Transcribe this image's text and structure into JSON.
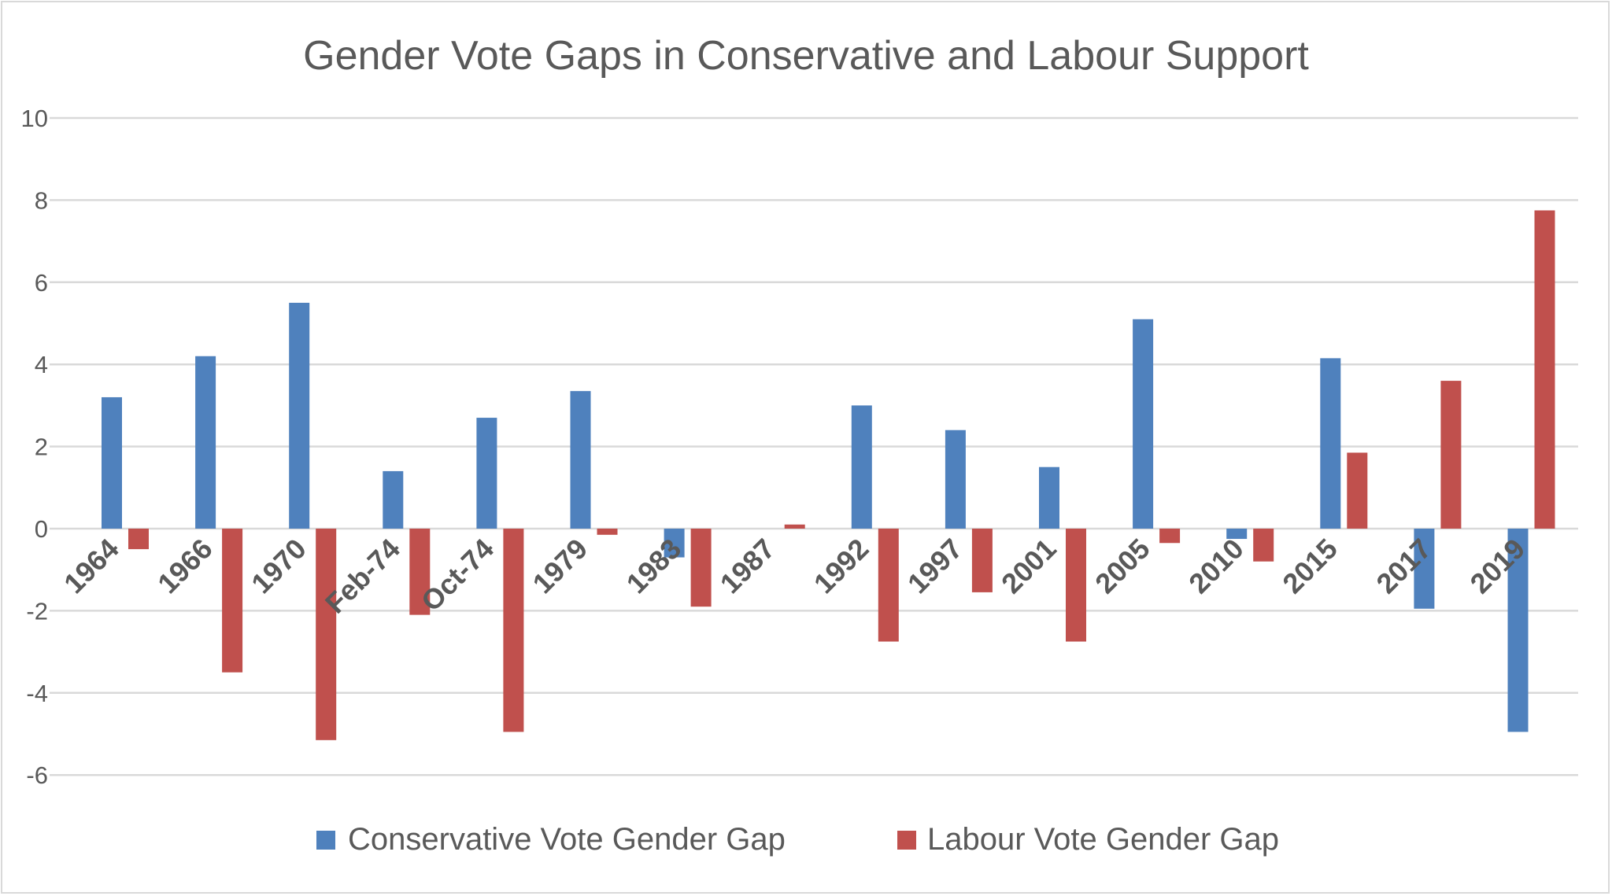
{
  "chart_data": {
    "type": "bar",
    "title": "Gender Vote Gaps in Conservative and Labour Support",
    "xlabel": "",
    "ylabel": "",
    "ylim": [
      -6,
      10
    ],
    "yticks": [
      10,
      8,
      6,
      4,
      2,
      0,
      -2,
      -4,
      -6
    ],
    "grid": true,
    "legend_position": "bottom",
    "categories": [
      "1964",
      "1966",
      "1970",
      "Feb-74",
      "Oct-74",
      "1979",
      "1983",
      "1987",
      "1992",
      "1997",
      "2001",
      "2005",
      "2010",
      "2015",
      "2017",
      "2019"
    ],
    "series": [
      {
        "name": "Conservative Vote Gender Gap",
        "color": "#4f81bd",
        "values": [
          3.2,
          4.2,
          5.5,
          1.4,
          2.7,
          3.35,
          -0.7,
          0,
          3.0,
          2.4,
          1.5,
          5.1,
          -0.25,
          4.15,
          -1.95,
          -4.95
        ]
      },
      {
        "name": "Labour Vote Gender Gap",
        "color": "#c0504d",
        "values": [
          -0.5,
          -3.5,
          -5.15,
          -2.1,
          -4.95,
          -0.15,
          -1.9,
          0.1,
          -2.75,
          -1.55,
          -2.75,
          -0.35,
          -0.8,
          1.85,
          3.6,
          7.75
        ]
      }
    ]
  }
}
